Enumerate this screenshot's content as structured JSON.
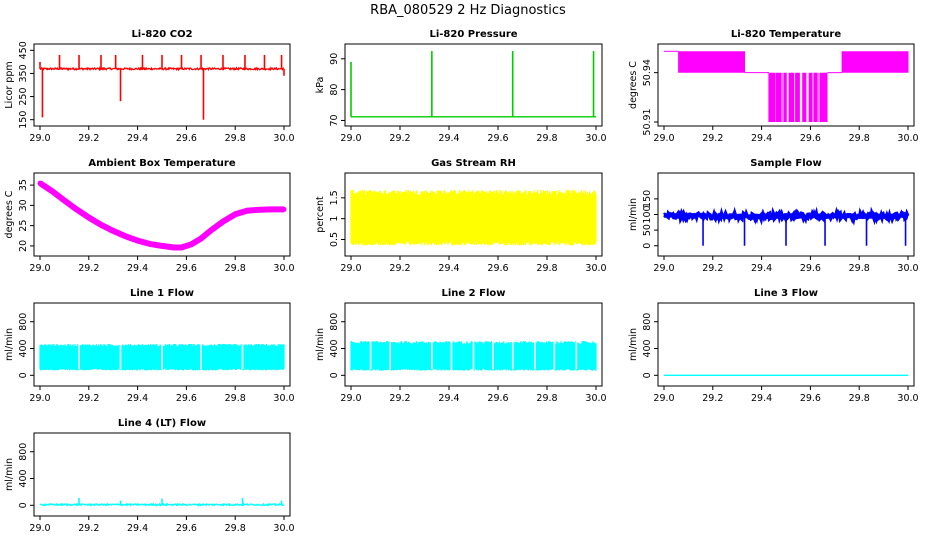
{
  "figure_title": "RBA_080529  2 Hz Diagnostics",
  "colors": {
    "red": "#ff0000",
    "green": "#00cc00",
    "magenta": "#ff00ff",
    "yellow": "#ffff00",
    "blue": "#0000ff",
    "cyan": "#00ffff",
    "axis": "#000000"
  },
  "chart_data": [
    {
      "type": "line",
      "title": "Li-820 CO2",
      "ylabel": "Licor ppm",
      "color": "red",
      "xlim": [
        29.0,
        30.0
      ],
      "ylim": [
        140,
        460
      ],
      "xticks": [
        "29.0",
        "29.2",
        "29.4",
        "29.6",
        "29.8",
        "30.0"
      ],
      "yticks": [
        150,
        250,
        350,
        450
      ],
      "baseline": 370,
      "x": [
        29.0,
        29.01,
        29.02,
        29.08,
        29.16,
        29.25,
        29.31,
        29.33,
        29.42,
        29.5,
        29.58,
        29.66,
        29.67,
        29.75,
        29.84,
        29.92,
        29.99,
        30.0
      ],
      "values": [
        400,
        160,
        370,
        430,
        430,
        430,
        430,
        230,
        430,
        430,
        430,
        430,
        150,
        430,
        430,
        430,
        430,
        340
      ]
    },
    {
      "type": "line",
      "title": "Li-820 Pressure",
      "ylabel": "kPa",
      "color": "green",
      "xlim": [
        29.0,
        30.0
      ],
      "ylim": [
        69.5,
        93.5
      ],
      "xticks": [
        "29.0",
        "29.2",
        "29.4",
        "29.6",
        "29.8",
        "30.0"
      ],
      "yticks": [
        70,
        80,
        90
      ],
      "baseline": 71.2,
      "x": [
        29.0,
        29.33,
        29.66,
        29.99
      ],
      "values": [
        89,
        92.5,
        92.5,
        92.5
      ]
    },
    {
      "type": "line",
      "title": "Li-820 Temperature",
      "ylabel": "degrees C",
      "color": "magenta",
      "xlim": [
        29.0,
        30.0
      ],
      "ylim": [
        50.91,
        50.955
      ],
      "xticks": [
        "29.0",
        "29.2",
        "29.4",
        "29.6",
        "29.8",
        "30.0"
      ],
      "yticks": [
        50.91,
        50.94
      ],
      "values": [
        50.953,
        50.953,
        50.94,
        50.94,
        50.94,
        50.94,
        50.91,
        50.91,
        50.91,
        50.94,
        50.94,
        50.94
      ]
    },
    {
      "type": "line",
      "title": "Ambient Box Temperature",
      "ylabel": "degrees C",
      "color": "magenta",
      "xlim": [
        29.0,
        30.0
      ],
      "ylim": [
        18.5,
        37
      ],
      "xticks": [
        "29.0",
        "29.2",
        "29.4",
        "29.6",
        "29.8",
        "30.0"
      ],
      "yticks": [
        20,
        25,
        30,
        35
      ],
      "x": [
        29.0,
        29.05,
        29.1,
        29.15,
        29.2,
        29.25,
        29.3,
        29.35,
        29.4,
        29.45,
        29.5,
        29.55,
        29.58,
        29.62,
        29.66,
        29.7,
        29.75,
        29.8,
        29.85,
        29.9,
        29.95,
        30.0
      ],
      "values": [
        35.5,
        33.5,
        31.2,
        29.0,
        27.0,
        25.2,
        23.7,
        22.4,
        21.3,
        20.5,
        20.0,
        19.6,
        19.6,
        20.4,
        21.8,
        23.8,
        26.0,
        27.8,
        28.7,
        28.9,
        29.0,
        29.0
      ]
    },
    {
      "type": "area",
      "title": "Gas Stream RH",
      "ylabel": "percent",
      "color": "yellow",
      "xlim": [
        29.0,
        30.0
      ],
      "ylim": [
        0.2,
        2.0
      ],
      "xticks": [
        "29.0",
        "29.2",
        "29.4",
        "29.6",
        "29.8",
        "30.0"
      ],
      "yticks": [
        0.5,
        1.0,
        1.5
      ],
      "upper": 1.6,
      "lower": 0.45
    },
    {
      "type": "line",
      "title": "Sample Flow",
      "ylabel": "ml/min",
      "color": "blue",
      "xlim": [
        29.0,
        30.0
      ],
      "ylim": [
        -20,
        220
      ],
      "xticks": [
        "29.0",
        "29.2",
        "29.4",
        "29.6",
        "29.8",
        "30.0"
      ],
      "yticks": [
        0,
        50,
        100,
        150
      ],
      "baseline": 95,
      "x": [
        29.16,
        29.33,
        29.5,
        29.66,
        29.83,
        29.99
      ],
      "values": [
        0,
        0,
        0,
        0,
        0,
        0
      ]
    },
    {
      "type": "area",
      "title": "Line 1 Flow",
      "ylabel": "ml/min",
      "color": "cyan",
      "xlim": [
        29.0,
        30.0
      ],
      "ylim": [
        -100,
        1020
      ],
      "xticks": [
        "29.0",
        "29.2",
        "29.4",
        "29.6",
        "29.8",
        "30.0"
      ],
      "yticks": [
        0,
        400,
        800
      ],
      "upper": 440,
      "lower": 100
    },
    {
      "type": "area",
      "title": "Line 2 Flow",
      "ylabel": "ml/min",
      "color": "cyan",
      "xlim": [
        29.0,
        30.0
      ],
      "ylim": [
        -100,
        1020
      ],
      "xticks": [
        "29.0",
        "29.2",
        "29.4",
        "29.6",
        "29.8",
        "30.0"
      ],
      "yticks": [
        0,
        400,
        800
      ],
      "upper": 480,
      "lower": 100
    },
    {
      "type": "line",
      "title": "Line 3 Flow",
      "ylabel": "ml/min",
      "color": "cyan",
      "xlim": [
        29.0,
        30.0
      ],
      "ylim": [
        -100,
        1020
      ],
      "xticks": [
        "29.0",
        "29.2",
        "29.4",
        "29.6",
        "29.8",
        "30.0"
      ],
      "yticks": [
        0,
        400,
        800
      ],
      "baseline": 0
    },
    {
      "type": "line",
      "title": "Line 4 (LT) Flow",
      "ylabel": "ml/min",
      "color": "cyan",
      "xlim": [
        29.0,
        30.0
      ],
      "ylim": [
        -100,
        1020
      ],
      "xticks": [
        "29.0",
        "29.2",
        "29.4",
        "29.6",
        "29.8",
        "30.0"
      ],
      "yticks": [
        0,
        400,
        800
      ],
      "baseline": 10,
      "x": [
        29.16,
        29.33,
        29.5,
        29.83,
        29.99
      ],
      "values": [
        110,
        70,
        100,
        110,
        70
      ]
    }
  ]
}
